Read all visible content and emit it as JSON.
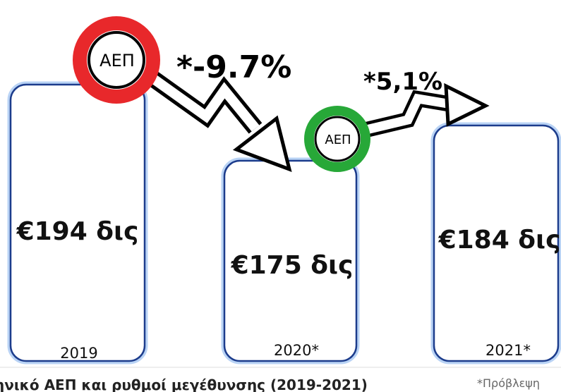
{
  "boxes": [
    {
      "value": "€194 δις",
      "year": "2019"
    },
    {
      "value": "€175 δις",
      "year": "2020*"
    },
    {
      "value": "€184 δις",
      "year": "2021*"
    }
  ],
  "badges": [
    {
      "label": "ΑΕΠ",
      "change": "*-9.7%"
    },
    {
      "label": "ΑΕΠ",
      "change": "*5,1%"
    }
  ],
  "caption": "ηνικό ΑΕΠ και ρυθμοί μεγέθυνσης (2019-2021)",
  "footnote": "*Πρόβλεψη"
}
